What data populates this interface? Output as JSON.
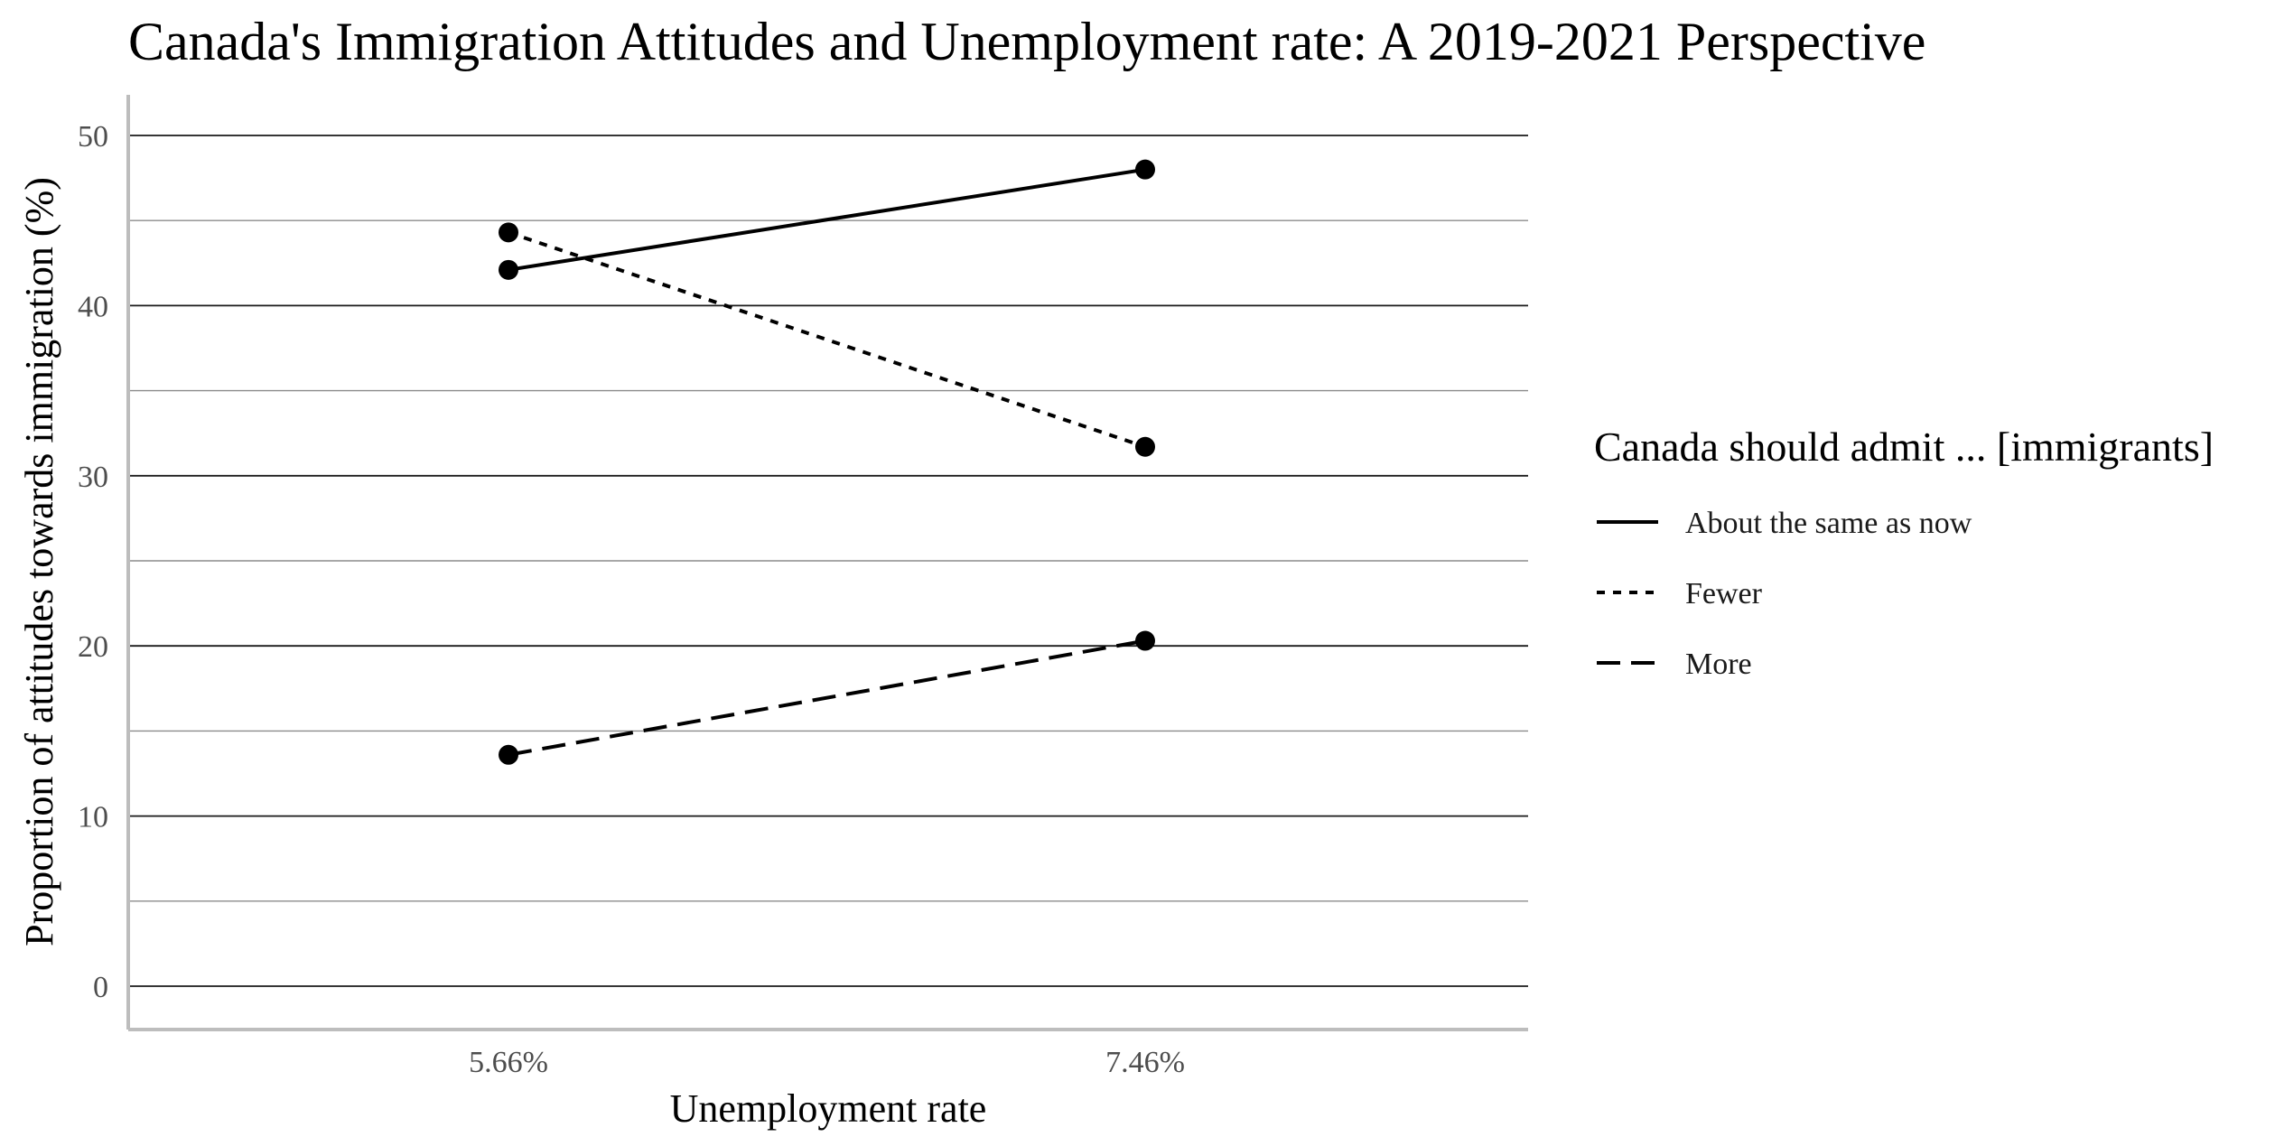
{
  "chart_data": {
    "type": "line",
    "title": "Canada's Immigration Attitudes and Unemployment rate: A 2019-2021 Perspective",
    "xlabel": "Unemployment rate",
    "ylabel": "Proportion of attitudes towards immigration (%)",
    "categories": [
      "5.66%",
      "7.46%"
    ],
    "ylim": [
      0,
      50
    ],
    "yticks": [
      0,
      10,
      20,
      30,
      40,
      50
    ],
    "grid": true,
    "legend": {
      "title": "Canada should admit ... [immigrants]",
      "position": "right"
    },
    "series": [
      {
        "name": "About the same as now",
        "values": [
          42.1,
          48.0
        ],
        "dash": "solid",
        "color": "#000000"
      },
      {
        "name": "Fewer",
        "values": [
          44.3,
          31.7
        ],
        "dash": "dotted",
        "color": "#000000"
      },
      {
        "name": "More",
        "values": [
          13.6,
          20.3
        ],
        "dash": "dashed",
        "color": "#000000"
      }
    ]
  }
}
